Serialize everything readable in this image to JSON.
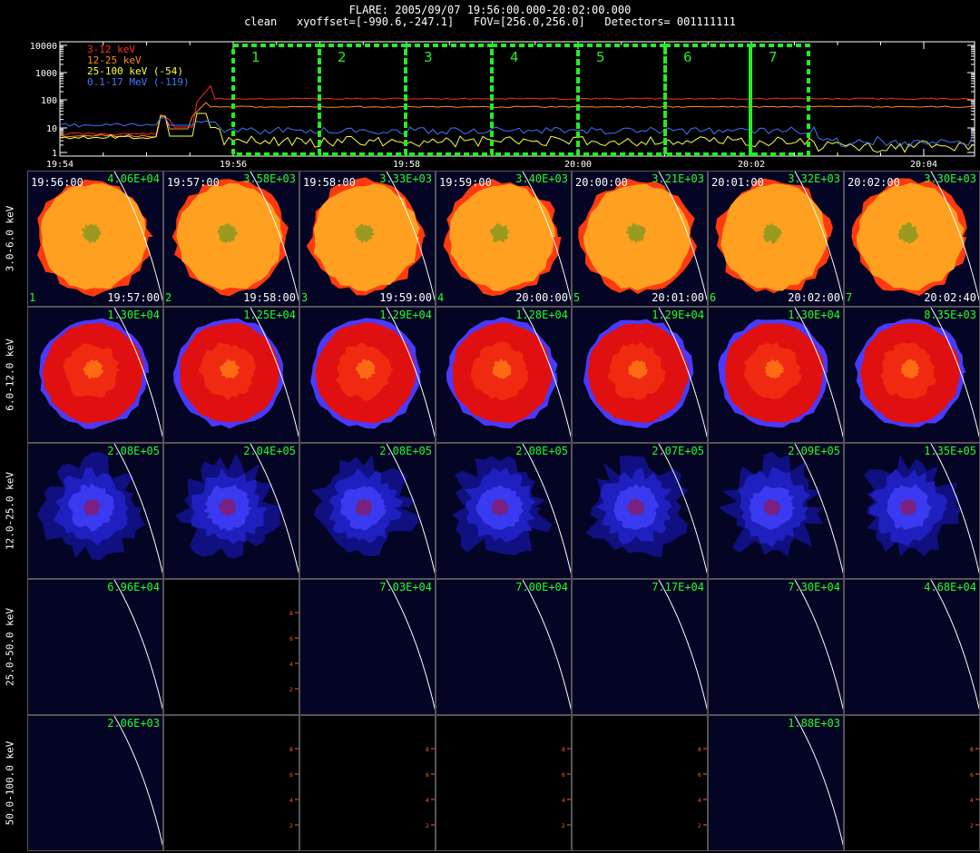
{
  "header": {
    "line1": "FLARE: 2005/09/07 19:56:00.000-20:02:00.000",
    "line2": "clean   xyoffset=[-990.6,-247.1]   FOV=[256.0,256.0]   Detectors= 001111111"
  },
  "lightcurve": {
    "y_ticks": [
      "10000",
      "1000",
      "100",
      "10",
      "1"
    ],
    "x_ticks": [
      "19:54",
      "19:56",
      "19:58",
      "20:00",
      "20:02",
      "20:04"
    ],
    "legend": [
      {
        "label": "3-12 keV",
        "color": "#ff2a2a"
      },
      {
        "label": "12-25 keV",
        "color": "#ff8c1a"
      },
      {
        "label": "25-100 keV (-54)",
        "color": "#ffff40"
      },
      {
        "label": "0.1-17 MeV (-119)",
        "color": "#3c78ff"
      }
    ],
    "intervals": [
      "1",
      "2",
      "3",
      "4",
      "5",
      "6",
      "7"
    ],
    "interval_color": "#22ee22"
  },
  "energy_bands": [
    "3.0-6.0 keV",
    "6.0-12.0 keV",
    "12.0-25.0 keV",
    "25.0-50.0 keV",
    "50.0-100.0 keV"
  ],
  "rows": [
    {
      "style": "orange",
      "panels": [
        {
          "tl": "19:56:00",
          "tr": "4.06E+04",
          "bl": "1",
          "br": "19:57:00"
        },
        {
          "tl": "19:57:00",
          "tr": "3.58E+03",
          "bl": "2",
          "br": "19:58:00"
        },
        {
          "tl": "19:58:00",
          "tr": "3.33E+03",
          "bl": "3",
          "br": "19:59:00"
        },
        {
          "tl": "19:59:00",
          "tr": "3.40E+03",
          "bl": "4",
          "br": "20:00:00"
        },
        {
          "tl": "20:00:00",
          "tr": "3.21E+03",
          "bl": "5",
          "br": "20:01:00"
        },
        {
          "tl": "20:01:00",
          "tr": "3.32E+03",
          "bl": "6",
          "br": "20:02:00"
        },
        {
          "tl": "20:02:00",
          "tr": "3.30E+03",
          "bl": "7",
          "br": "20:02:40"
        }
      ]
    },
    {
      "style": "red",
      "panels": [
        {
          "tr": "1.30E+04"
        },
        {
          "tr": "1.25E+04"
        },
        {
          "tr": "1.29E+04"
        },
        {
          "tr": "1.28E+04"
        },
        {
          "tr": "1.29E+04"
        },
        {
          "tr": "1.30E+04"
        },
        {
          "tr": "8.35E+03"
        }
      ]
    },
    {
      "style": "blue",
      "panels": [
        {
          "tr": "2.08E+05"
        },
        {
          "tr": "2.04E+05"
        },
        {
          "tr": "2.08E+05"
        },
        {
          "tr": "2.08E+05"
        },
        {
          "tr": "2.07E+05"
        },
        {
          "tr": "2.09E+05"
        },
        {
          "tr": "1.35E+05"
        }
      ]
    },
    {
      "style": "dark",
      "panels": [
        {
          "tr": "6.96E+04",
          "s": "n"
        },
        {
          "tr": "",
          "s": "b"
        },
        {
          "tr": "7.03E+04",
          "s": "n"
        },
        {
          "tr": "7.00E+04",
          "s": "n"
        },
        {
          "tr": "7.17E+04",
          "s": "n"
        },
        {
          "tr": "7.30E+04",
          "s": "n"
        },
        {
          "tr": "4.68E+04",
          "s": "n"
        }
      ]
    },
    {
      "style": "dark",
      "panels": [
        {
          "tr": "2.06E+03",
          "s": "n"
        },
        {
          "tr": "",
          "s": "b"
        },
        {
          "tr": "",
          "s": "b"
        },
        {
          "tr": "",
          "s": "b"
        },
        {
          "tr": "",
          "s": "b"
        },
        {
          "tr": "1.88E+03",
          "s": "n"
        },
        {
          "tr": "",
          "s": "b"
        }
      ]
    }
  ],
  "axis_ticks": [
    "2",
    "4",
    "6",
    "8"
  ]
}
